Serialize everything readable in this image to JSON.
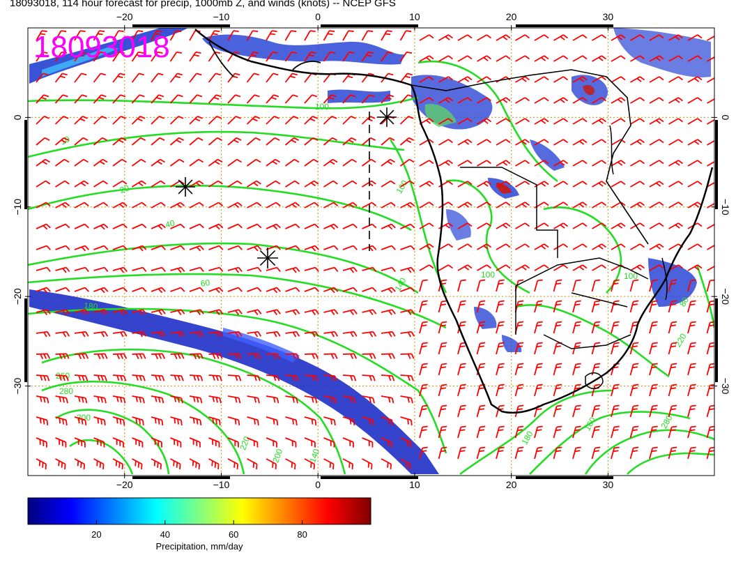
{
  "title": "18093018, 114 hour forecast for precip, 1000mb Z, and winds (knots) -- NCEP GFS",
  "stamp": "18093018",
  "stamp_color": "#ff00ff",
  "axes": {
    "lon_ticks_top": [
      "−20",
      "−10",
      "0",
      "10",
      "20",
      "30"
    ],
    "lon_ticks_bottom": [
      "−20",
      "−10",
      "0",
      "10",
      "20",
      "30"
    ],
    "lat_ticks_left": [
      "0",
      "−10",
      "−20",
      "−30"
    ],
    "lat_ticks_right": [
      "0",
      "−10",
      "−20",
      "−30"
    ],
    "lon_range": [
      -30,
      41
    ],
    "lat_range": [
      -40,
      10
    ]
  },
  "colorbar": {
    "label": "Precipitation, mm/day",
    "ticks": [
      "20",
      "40",
      "60",
      "80"
    ],
    "range": [
      0,
      100
    ],
    "colors": [
      "#00007f",
      "#0000ff",
      "#0080ff",
      "#00ffff",
      "#80ff80",
      "#ffff00",
      "#ff8000",
      "#ff0000",
      "#7f0000"
    ]
  },
  "contour_labels": [
    "10",
    "20",
    "40",
    "60",
    "80",
    "100",
    "140",
    "160",
    "180",
    "200",
    "220",
    "240",
    "260",
    "280",
    "300"
  ],
  "colors": {
    "contour": "#22dd22",
    "wind_barb": "#ff0000",
    "grid": "#d4a020",
    "coastline": "#000000"
  },
  "markers": [
    "asterisk",
    "asterisk",
    "asterisk"
  ]
}
